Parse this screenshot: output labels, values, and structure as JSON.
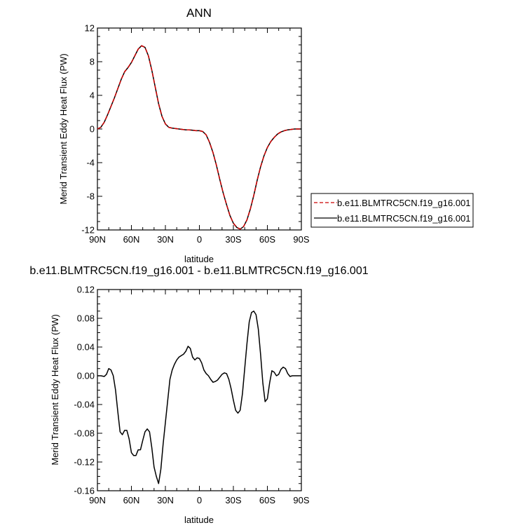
{
  "chart_data": [
    {
      "type": "line",
      "title": "ANN",
      "xlabel": "latitude",
      "ylabel": "Merid Transient Eddy Heat Flux (PW)",
      "xlim": [
        90,
        -90
      ],
      "ylim": [
        -12,
        12
      ],
      "x_ticks": [
        90,
        60,
        30,
        0,
        -30,
        -60,
        -90
      ],
      "x_tick_labels": [
        "90N",
        "60N",
        "30N",
        "0",
        "30S",
        "60S",
        "90S"
      ],
      "y_ticks": [
        12,
        8,
        4,
        0,
        -4,
        -8,
        -12
      ],
      "y_tick_labels": [
        "12",
        "8",
        "4",
        "0",
        "-4",
        "-8",
        "-12"
      ],
      "grid": false,
      "legend_position": "right",
      "series": [
        {
          "name": "b.e11.BLMTRC5CN.f19_g16.001",
          "color": "#cc0000",
          "dash": "dashed",
          "x": [
            90,
            87,
            84,
            81,
            78,
            75,
            72,
            69,
            66,
            63,
            60,
            57,
            54,
            51,
            48,
            45,
            42,
            39,
            36,
            33,
            30,
            27,
            24,
            21,
            18,
            15,
            12,
            9,
            6,
            3,
            0,
            -3,
            -6,
            -9,
            -12,
            -15,
            -18,
            -21,
            -24,
            -27,
            -30,
            -33,
            -36,
            -39,
            -42,
            -45,
            -48,
            -51,
            -54,
            -57,
            -60,
            -63,
            -66,
            -69,
            -72,
            -75,
            -78,
            -81,
            -84,
            -87,
            -90
          ],
          "y": [
            0,
            0.2,
            0.8,
            1.7,
            2.7,
            3.7,
            4.8,
            5.9,
            6.8,
            7.3,
            7.9,
            8.7,
            9.5,
            9.9,
            9.7,
            8.7,
            7.0,
            5.0,
            3.0,
            1.5,
            0.6,
            0.2,
            0.1,
            0.05,
            0.0,
            -0.05,
            -0.1,
            -0.1,
            -0.15,
            -0.2,
            -0.2,
            -0.3,
            -0.7,
            -1.6,
            -2.8,
            -4.3,
            -6.0,
            -7.6,
            -9.0,
            -10.3,
            -11.2,
            -11.7,
            -11.9,
            -11.6,
            -10.8,
            -9.5,
            -7.9,
            -6.1,
            -4.5,
            -3.2,
            -2.2,
            -1.5,
            -1.0,
            -0.6,
            -0.35,
            -0.2,
            -0.1,
            -0.05,
            0,
            0,
            0
          ]
        },
        {
          "name": "b.e11.BLMTRC5CN.f19_g16.001",
          "color": "#000000",
          "dash": "solid",
          "x": [
            90,
            87,
            84,
            81,
            78,
            75,
            72,
            69,
            66,
            63,
            60,
            57,
            54,
            51,
            48,
            45,
            42,
            39,
            36,
            33,
            30,
            27,
            24,
            21,
            18,
            15,
            12,
            9,
            6,
            3,
            0,
            -3,
            -6,
            -9,
            -12,
            -15,
            -18,
            -21,
            -24,
            -27,
            -30,
            -33,
            -36,
            -39,
            -42,
            -45,
            -48,
            -51,
            -54,
            -57,
            -60,
            -63,
            -66,
            -69,
            -72,
            -75,
            -78,
            -81,
            -84,
            -87,
            -90
          ],
          "y": [
            0,
            0.2,
            0.8,
            1.7,
            2.7,
            3.7,
            4.8,
            5.9,
            6.8,
            7.3,
            7.9,
            8.7,
            9.5,
            9.9,
            9.7,
            8.7,
            7.0,
            5.0,
            3.0,
            1.5,
            0.6,
            0.2,
            0.1,
            0.05,
            0.0,
            -0.05,
            -0.1,
            -0.1,
            -0.15,
            -0.2,
            -0.2,
            -0.3,
            -0.7,
            -1.6,
            -2.8,
            -4.3,
            -6.0,
            -7.6,
            -9.0,
            -10.3,
            -11.2,
            -11.7,
            -11.9,
            -11.6,
            -10.8,
            -9.5,
            -7.9,
            -6.1,
            -4.5,
            -3.2,
            -2.2,
            -1.5,
            -1.0,
            -0.6,
            -0.35,
            -0.2,
            -0.1,
            -0.05,
            0,
            0,
            0
          ]
        }
      ]
    },
    {
      "type": "line",
      "title": "b.e11.BLMTRC5CN.f19_g16.001 - b.e11.BLMTRC5CN.f19_g16.001",
      "xlabel": "latitude",
      "ylabel": "Merid Transient Eddy Heat Flux (PW)",
      "xlim": [
        90,
        -90
      ],
      "ylim": [
        -0.16,
        0.12
      ],
      "x_ticks": [
        90,
        60,
        30,
        0,
        -30,
        -60,
        -90
      ],
      "x_tick_labels": [
        "90N",
        "60N",
        "30N",
        "0",
        "30S",
        "60S",
        "90S"
      ],
      "y_ticks": [
        0.12,
        0.08,
        0.04,
        0.0,
        -0.04,
        -0.08,
        -0.12,
        -0.16
      ],
      "y_tick_labels": [
        "0.12",
        "0.08",
        "0.04",
        "0.00",
        "-0.04",
        "-0.08",
        "-0.12",
        "-0.16"
      ],
      "grid": false,
      "series": [
        {
          "color": "#000000",
          "dash": "solid",
          "x": [
            90,
            87,
            84,
            82,
            80,
            78,
            76,
            74,
            72,
            70,
            68,
            66,
            64,
            62,
            60,
            58,
            56,
            54,
            52,
            50,
            48,
            46,
            44,
            42,
            40,
            38,
            36,
            34,
            32,
            30,
            28,
            26,
            24,
            22,
            20,
            18,
            16,
            14,
            12,
            10,
            8,
            6,
            4,
            2,
            0,
            -2,
            -4,
            -6,
            -8,
            -10,
            -12,
            -14,
            -16,
            -18,
            -20,
            -22,
            -24,
            -26,
            -28,
            -30,
            -32,
            -34,
            -36,
            -38,
            -40,
            -42,
            -44,
            -46,
            -48,
            -50,
            -52,
            -54,
            -56,
            -58,
            -60,
            -62,
            -64,
            -66,
            -68,
            -70,
            -72,
            -74,
            -76,
            -78,
            -80,
            -82,
            -84,
            -86,
            -88,
            -90
          ],
          "y": [
            0,
            0,
            -0.001,
            0.002,
            0.01,
            0.008,
            0.0,
            -0.02,
            -0.05,
            -0.078,
            -0.082,
            -0.076,
            -0.076,
            -0.088,
            -0.107,
            -0.111,
            -0.111,
            -0.103,
            -0.103,
            -0.09,
            -0.078,
            -0.074,
            -0.078,
            -0.1,
            -0.127,
            -0.14,
            -0.15,
            -0.13,
            -0.095,
            -0.065,
            -0.035,
            -0.005,
            0.008,
            0.016,
            0.022,
            0.026,
            0.028,
            0.03,
            0.034,
            0.041,
            0.038,
            0.026,
            0.022,
            0.025,
            0.024,
            0.018,
            0.008,
            0.003,
            0.0,
            -0.005,
            -0.009,
            -0.008,
            -0.006,
            -0.002,
            0.002,
            0.004,
            0.003,
            -0.005,
            -0.018,
            -0.034,
            -0.048,
            -0.052,
            -0.048,
            -0.025,
            0.01,
            0.045,
            0.075,
            0.088,
            0.09,
            0.085,
            0.065,
            0.03,
            -0.01,
            -0.036,
            -0.032,
            -0.01,
            0.007,
            0.005,
            0.0,
            0.002,
            0.009,
            0.012,
            0.01,
            0.003,
            -0.001,
            0,
            0,
            0,
            0,
            0
          ]
        }
      ]
    }
  ]
}
